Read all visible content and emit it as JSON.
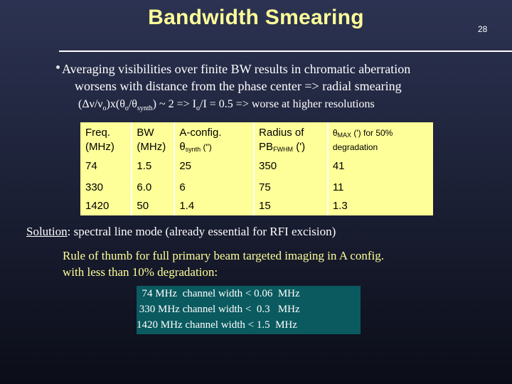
{
  "slide": {
    "title": "Bandwidth Smearing",
    "page_number": "28"
  },
  "bullet": {
    "line1": "Averaging visibilities over finite BW results in chromatic aberration",
    "line2": "worsens with distance from the phase center => radial smearing",
    "line3_pre": "(Δν/ν",
    "line3_sub1": "o",
    "line3_mid1": ")x(θ",
    "line3_sub2": "o",
    "line3_mid2": "/θ",
    "line3_sub3": "synth",
    "line3_mid3": ") ~ 2 => I",
    "line3_sub4": "o",
    "line3_post": "/I = 0.5  => worse at higher resolutions"
  },
  "table": {
    "headers": {
      "col1": "Freq. (MHz)",
      "col2": "BW (MHz)",
      "col3_line1": "A-config.",
      "col3_line2_pre": "θ",
      "col3_line2_sub": "synth",
      "col3_line2_post": " (\")",
      "col4_line1": "Radius of",
      "col4_line2_pre": "PB",
      "col4_line2_sub": "FWHM",
      "col4_line2_post": " (')",
      "col5_pre": "θ",
      "col5_sub": "MAX",
      "col5_post": " (') for 50% degradation"
    },
    "rows": [
      [
        "74",
        "1.5",
        "25",
        "350",
        "41"
      ],
      [
        "330",
        "6.0",
        "6",
        "75",
        "11"
      ],
      [
        "1420",
        "50",
        "1.4",
        "15",
        "1.3"
      ]
    ]
  },
  "solution": {
    "label": "Solution",
    "text": ": spectral line mode (already essential for RFI excision)"
  },
  "rule_of_thumb": {
    "line1": "Rule of thumb for full primary beam targeted imaging in A config.",
    "line2": "with less than 10% degradation:"
  },
  "channel_box": {
    "line1": "  74 MHz  channel width < 0.06  MHz",
    "line2": " 330 MHz channel width <  0.3   MHz",
    "line3": "1420 MHz channel width < 1.5  MHz"
  },
  "colors": {
    "title": "#ffff99",
    "table_bg": "#ffff99",
    "box_bg": "#0a5a5f",
    "background": "#1d2238"
  }
}
